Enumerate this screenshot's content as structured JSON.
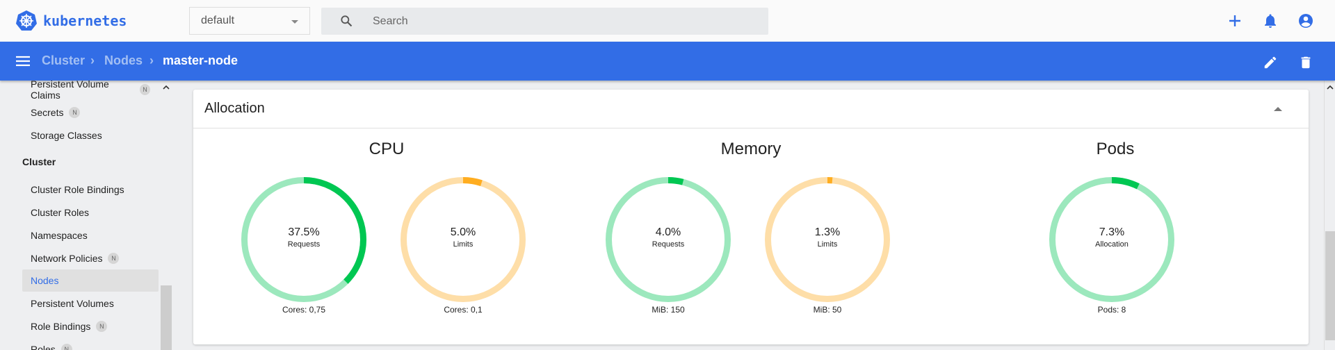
{
  "topbar": {
    "logo_text": "kubernetes",
    "namespace": "default",
    "search_placeholder": "Search",
    "icons": [
      "plus-icon",
      "bell-icon",
      "account-icon"
    ],
    "accent": "#326de6"
  },
  "header": {
    "breadcrumb": [
      "Cluster",
      "Nodes",
      "master-node"
    ],
    "actions": [
      "edit-icon",
      "delete-icon"
    ]
  },
  "sidebar": {
    "items_top": [
      {
        "label": "Persistent Volume Claims",
        "badge": "N"
      },
      {
        "label": "Secrets",
        "badge": "N"
      },
      {
        "label": "Storage Classes"
      }
    ],
    "section": "Cluster",
    "items": [
      {
        "label": "Cluster Role Bindings"
      },
      {
        "label": "Cluster Roles"
      },
      {
        "label": "Namespaces"
      },
      {
        "label": "Network Policies",
        "badge": "N"
      },
      {
        "label": "Nodes",
        "active": true
      },
      {
        "label": "Persistent Volumes"
      },
      {
        "label": "Role Bindings",
        "badge": "N"
      },
      {
        "label": "Roles",
        "badge": "N"
      }
    ]
  },
  "card": {
    "title": "Allocation",
    "groups": [
      {
        "title": "CPU"
      },
      {
        "title": "Memory"
      },
      {
        "title": "Pods"
      }
    ],
    "gauges": [
      {
        "percent": "37.5%",
        "value": 37.5,
        "label": "Requests",
        "sub": "Cores: 0,75",
        "color": "#00c752",
        "track": "#9ce8bd"
      },
      {
        "percent": "5.0%",
        "value": 5.0,
        "label": "Limits",
        "sub": "Cores: 0,1",
        "color": "#ffad20",
        "track": "#fedea8"
      },
      {
        "percent": "4.0%",
        "value": 4.0,
        "label": "Requests",
        "sub": "MiB: 150",
        "color": "#00c752",
        "track": "#9ce8bd"
      },
      {
        "percent": "1.3%",
        "value": 1.3,
        "label": "Limits",
        "sub": "MiB: 50",
        "color": "#ffad20",
        "track": "#fedea8"
      },
      {
        "percent": "7.3%",
        "value": 7.3,
        "label": "Allocation",
        "sub": "Pods: 8",
        "color": "#00c752",
        "track": "#9ce8bd"
      }
    ]
  }
}
